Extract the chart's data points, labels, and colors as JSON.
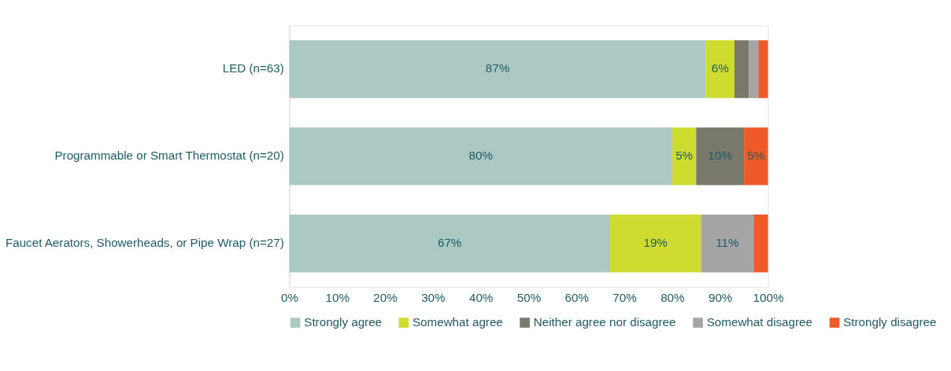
{
  "chart_data": {
    "type": "bar",
    "orientation": "horizontal",
    "stacked": true,
    "categories": [
      "LED (n=63)",
      "Programmable or Smart Thermostat (n=20)",
      "Faucet Aerators, Showerheads, or Pipe Wrap (n=27)"
    ],
    "series": [
      {
        "name": "Strongly agree",
        "color": "#abc8c3",
        "values": [
          87,
          80,
          67
        ],
        "value_labels": [
          "87%",
          "80%",
          "67%"
        ]
      },
      {
        "name": "Somewhat agree",
        "color": "#cddc2f",
        "values": [
          6,
          5,
          19
        ],
        "value_labels": [
          "6%",
          "5%",
          "19%"
        ]
      },
      {
        "name": "Neither agree nor disagree",
        "color": "#78786b",
        "values": [
          3,
          10,
          0
        ],
        "value_labels": [
          null,
          "10%",
          null
        ]
      },
      {
        "name": "Somewhat disagree",
        "color": "#a5a5a5",
        "values": [
          2,
          0,
          11
        ],
        "value_labels": [
          null,
          null,
          "11%"
        ]
      },
      {
        "name": "Strongly disagree",
        "color": "#f05a28",
        "values": [
          2,
          5,
          3
        ],
        "value_labels": [
          null,
          "5%",
          null
        ]
      }
    ],
    "xlim": [
      0,
      100
    ],
    "xticks": [
      {
        "value": 0,
        "label": "0%"
      },
      {
        "value": 10,
        "label": "10%"
      },
      {
        "value": 20,
        "label": "20%"
      },
      {
        "value": 30,
        "label": "30%"
      },
      {
        "value": 40,
        "label": "40%"
      },
      {
        "value": 50,
        "label": "50%"
      },
      {
        "value": 60,
        "label": "60%"
      },
      {
        "value": 70,
        "label": "70%"
      },
      {
        "value": 80,
        "label": "80%"
      },
      {
        "value": 90,
        "label": "90%"
      },
      {
        "value": 100,
        "label": "100%"
      }
    ],
    "grid": false,
    "legend": "bottom"
  }
}
